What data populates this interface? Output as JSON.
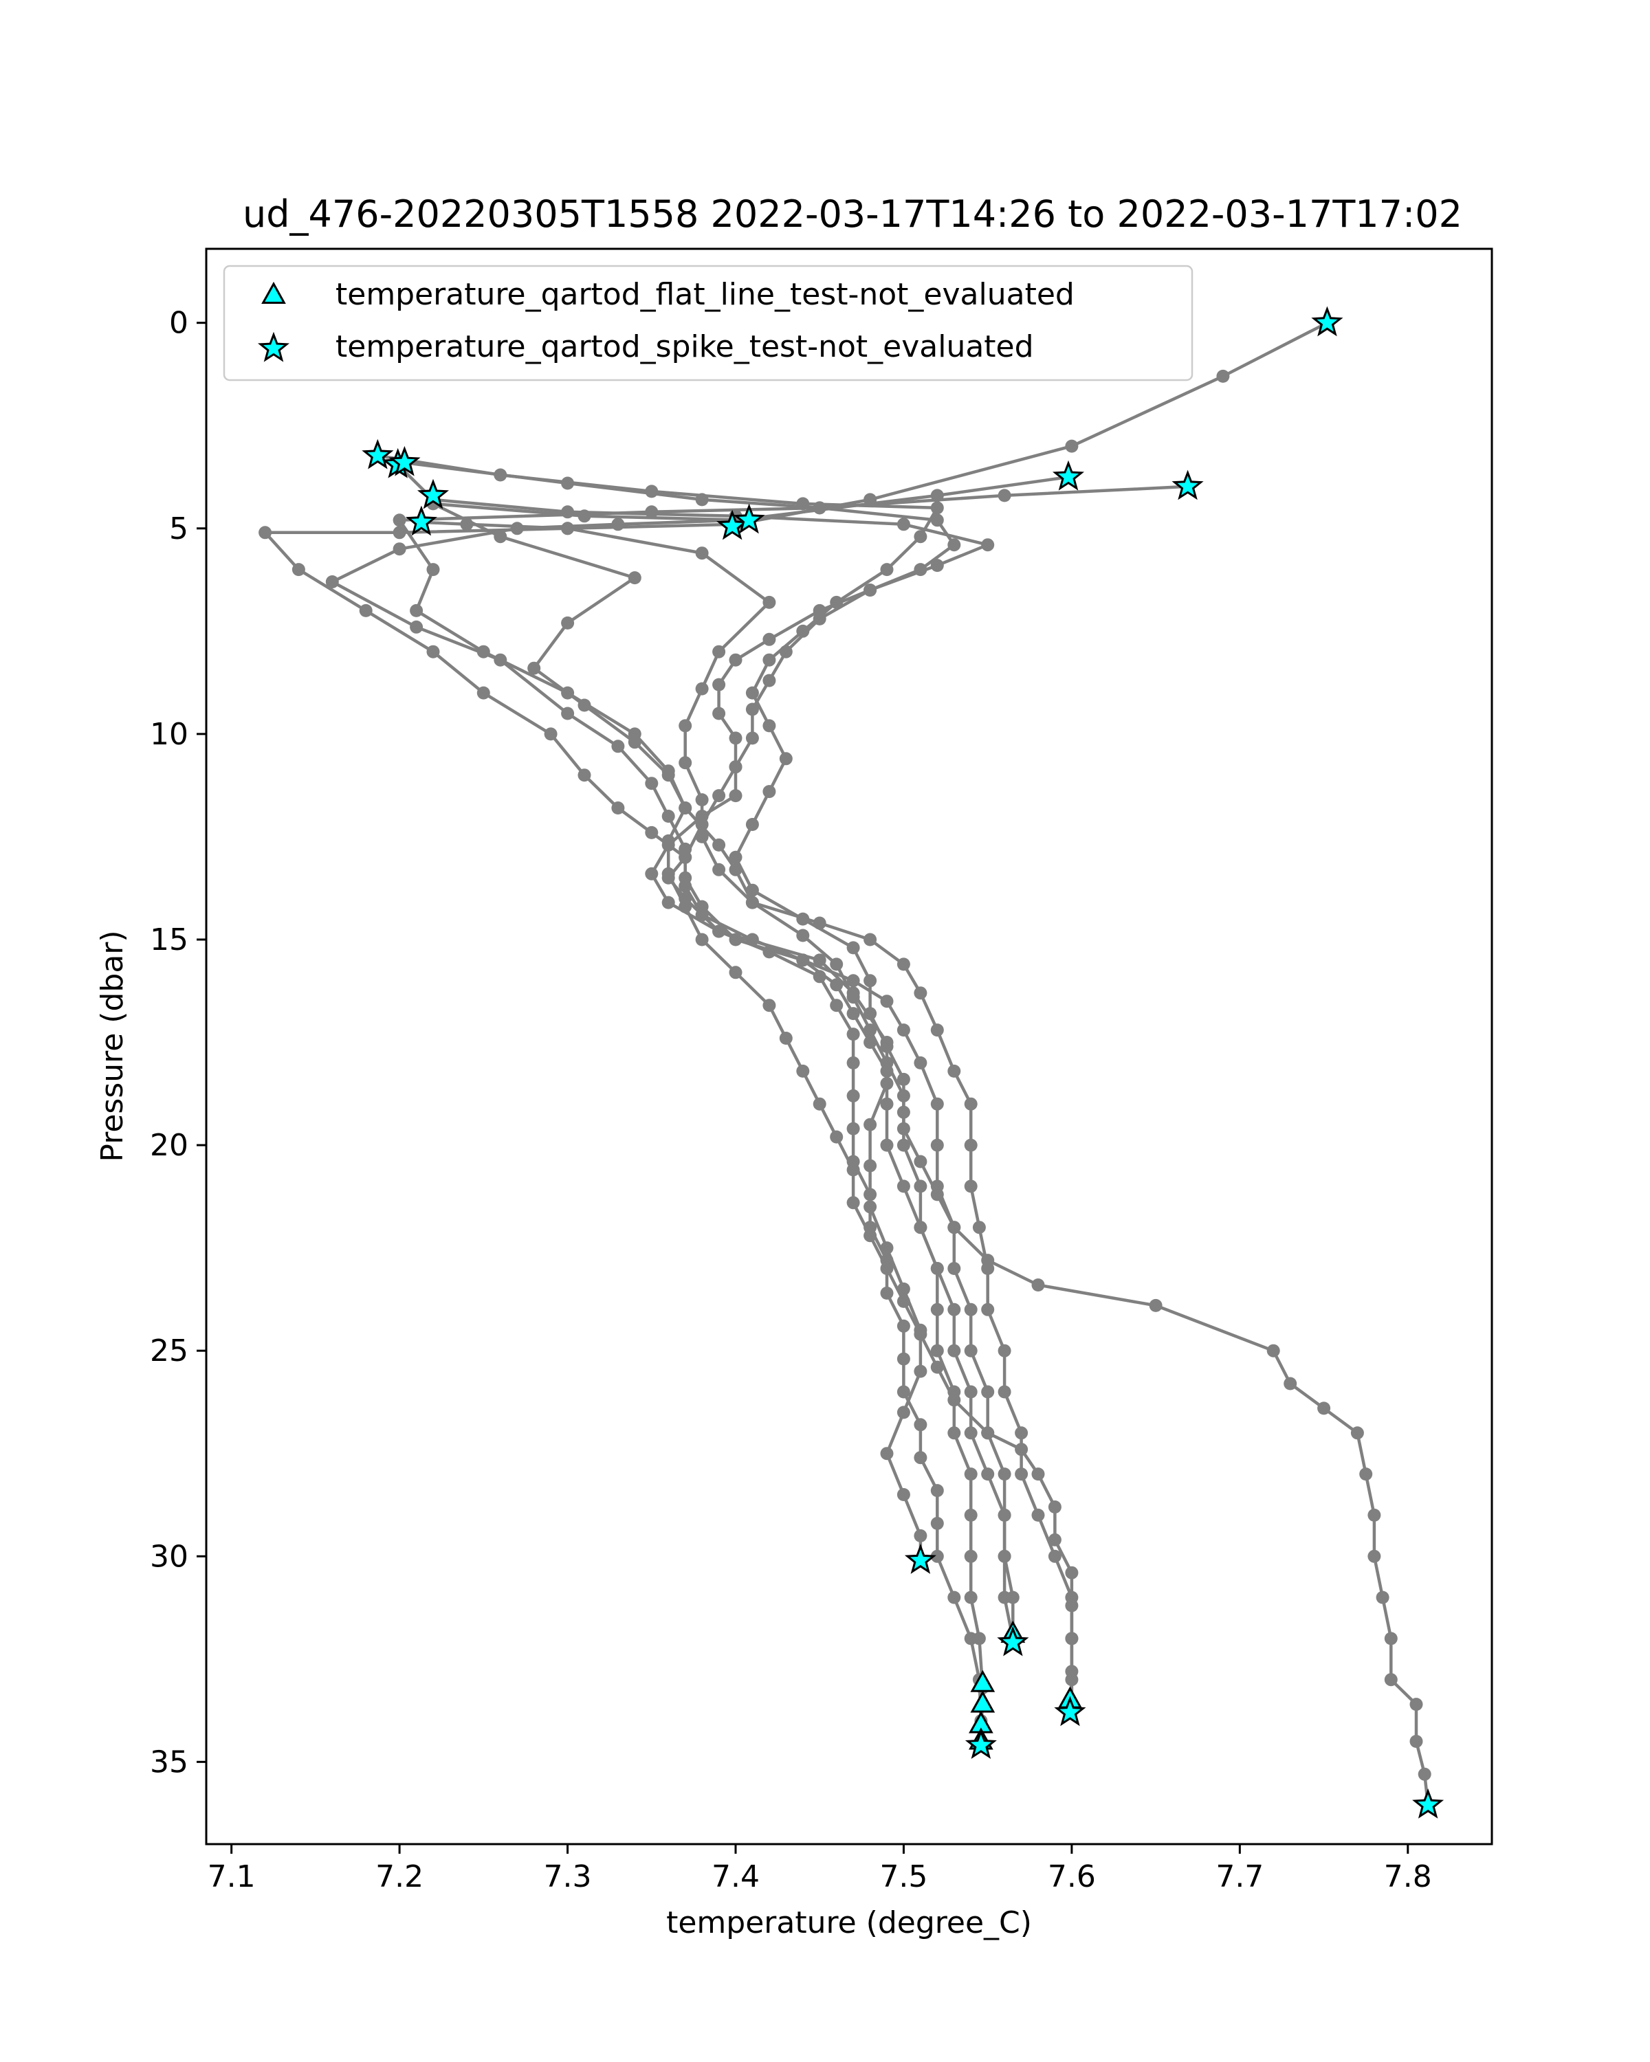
{
  "chart_data": {
    "type": "scatter",
    "title": "ud_476-20220305T1558 2022-03-17T14:26 to 2022-03-17T17:02",
    "xlabel": "temperature (degree_C)",
    "ylabel": "Pressure (dbar)",
    "xlim": [
      7.085,
      7.85
    ],
    "ylim": [
      37.0,
      -1.8
    ],
    "y_inverted": true,
    "grid": false,
    "legend_position": "top-left",
    "x_ticks": [
      7.1,
      7.2,
      7.3,
      7.4,
      7.5,
      7.6,
      7.7,
      7.8
    ],
    "x_tick_labels": [
      "7.1",
      "7.2",
      "7.3",
      "7.4",
      "7.5",
      "7.6",
      "7.7",
      "7.8"
    ],
    "y_ticks": [
      0,
      5,
      10,
      15,
      20,
      25,
      30,
      35
    ],
    "y_tick_labels": [
      "0",
      "5",
      "10",
      "15",
      "20",
      "25",
      "30",
      "35"
    ],
    "line_color": "#808080",
    "marker_color": "#00ffff",
    "profiles": [
      [
        [
          7.752,
          0.0
        ],
        [
          7.69,
          1.3
        ],
        [
          7.6,
          3.0
        ],
        [
          7.48,
          4.3
        ],
        [
          7.4,
          4.9
        ],
        [
          7.3,
          5.0
        ],
        [
          7.2,
          5.1
        ],
        [
          7.12,
          5.1
        ],
        [
          7.14,
          6.0
        ],
        [
          7.18,
          7.0
        ],
        [
          7.22,
          8.0
        ],
        [
          7.25,
          9.0
        ],
        [
          7.29,
          10.0
        ],
        [
          7.31,
          11.0
        ],
        [
          7.33,
          11.8
        ],
        [
          7.35,
          12.4
        ],
        [
          7.37,
          13.0
        ],
        [
          7.36,
          13.5
        ],
        [
          7.37,
          14.0
        ],
        [
          7.39,
          14.8
        ],
        [
          7.45,
          15.5
        ],
        [
          7.47,
          16.3
        ],
        [
          7.49,
          17.5
        ],
        [
          7.49,
          18.5
        ],
        [
          7.48,
          19.5
        ],
        [
          7.48,
          20.5
        ],
        [
          7.48,
          21.5
        ],
        [
          7.49,
          22.5
        ],
        [
          7.5,
          23.5
        ],
        [
          7.51,
          24.5
        ],
        [
          7.51,
          25.5
        ],
        [
          7.5,
          26.5
        ],
        [
          7.49,
          27.5
        ],
        [
          7.5,
          28.5
        ],
        [
          7.51,
          29.5
        ],
        [
          7.51,
          30.1
        ]
      ],
      [
        [
          7.598,
          3.75
        ],
        [
          7.52,
          4.2
        ],
        [
          7.4,
          4.8
        ],
        [
          7.33,
          4.9
        ],
        [
          7.27,
          5.0
        ],
        [
          7.2,
          5.5
        ],
        [
          7.16,
          6.3
        ],
        [
          7.21,
          7.4
        ],
        [
          7.26,
          8.2
        ],
        [
          7.3,
          9.5
        ],
        [
          7.33,
          10.3
        ],
        [
          7.35,
          11.2
        ],
        [
          7.36,
          12.0
        ],
        [
          7.37,
          12.8
        ],
        [
          7.37,
          13.5
        ],
        [
          7.38,
          14.2
        ],
        [
          7.4,
          15.0
        ],
        [
          7.44,
          15.5
        ],
        [
          7.47,
          16.0
        ],
        [
          7.49,
          16.5
        ],
        [
          7.5,
          17.2
        ],
        [
          7.51,
          18.0
        ],
        [
          7.52,
          19.0
        ],
        [
          7.52,
          20.0
        ],
        [
          7.52,
          21.0
        ],
        [
          7.53,
          22.0
        ],
        [
          7.53,
          23.0
        ],
        [
          7.54,
          24.0
        ],
        [
          7.54,
          25.0
        ],
        [
          7.55,
          26.0
        ],
        [
          7.55,
          27.0
        ],
        [
          7.56,
          28.0
        ],
        [
          7.56,
          29.0
        ],
        [
          7.56,
          30.0
        ],
        [
          7.56,
          31.0
        ],
        [
          7.565,
          32.0
        ]
      ],
      [
        [
          7.669,
          3.98
        ],
        [
          7.56,
          4.2
        ],
        [
          7.45,
          4.5
        ],
        [
          7.35,
          4.6
        ],
        [
          7.2,
          4.8
        ],
        [
          7.22,
          6.0
        ],
        [
          7.21,
          7.0
        ],
        [
          7.25,
          8.0
        ],
        [
          7.3,
          9.0
        ],
        [
          7.34,
          10.0
        ],
        [
          7.36,
          10.9
        ],
        [
          7.37,
          11.8
        ],
        [
          7.39,
          12.7
        ],
        [
          7.4,
          13.3
        ],
        [
          7.41,
          14.1
        ],
        [
          7.45,
          14.6
        ],
        [
          7.48,
          15.0
        ],
        [
          7.5,
          15.6
        ],
        [
          7.51,
          16.3
        ],
        [
          7.52,
          17.2
        ],
        [
          7.53,
          18.2
        ],
        [
          7.54,
          19.0
        ],
        [
          7.54,
          20.0
        ],
        [
          7.54,
          21.0
        ],
        [
          7.545,
          22.0
        ],
        [
          7.55,
          23.0
        ],
        [
          7.55,
          24.0
        ],
        [
          7.56,
          25.0
        ],
        [
          7.56,
          26.0
        ],
        [
          7.57,
          27.0
        ],
        [
          7.57,
          28.0
        ],
        [
          7.58,
          29.0
        ],
        [
          7.59,
          30.0
        ],
        [
          7.6,
          31.0
        ],
        [
          7.6,
          32.0
        ],
        [
          7.6,
          33.0
        ],
        [
          7.599,
          33.8
        ]
      ],
      [
        [
          7.187,
          3.23
        ],
        [
          7.26,
          3.7
        ],
        [
          7.35,
          4.1
        ],
        [
          7.44,
          4.4
        ],
        [
          7.52,
          4.5
        ],
        [
          7.51,
          5.2
        ],
        [
          7.49,
          6.0
        ],
        [
          7.46,
          6.8
        ],
        [
          7.44,
          7.5
        ],
        [
          7.42,
          8.2
        ],
        [
          7.41,
          9.0
        ],
        [
          7.42,
          9.8
        ],
        [
          7.43,
          10.6
        ],
        [
          7.42,
          11.4
        ],
        [
          7.41,
          12.2
        ],
        [
          7.4,
          13.0
        ],
        [
          7.41,
          13.8
        ],
        [
          7.44,
          14.5
        ],
        [
          7.47,
          15.2
        ],
        [
          7.48,
          16.0
        ],
        [
          7.48,
          16.8
        ],
        [
          7.49,
          17.6
        ],
        [
          7.5,
          18.4
        ],
        [
          7.5,
          19.2
        ],
        [
          7.5,
          20.0
        ],
        [
          7.51,
          21.0
        ],
        [
          7.51,
          22.0
        ],
        [
          7.52,
          23.0
        ],
        [
          7.52,
          24.0
        ],
        [
          7.52,
          25.0
        ],
        [
          7.53,
          26.0
        ],
        [
          7.53,
          27.0
        ],
        [
          7.54,
          28.0
        ],
        [
          7.54,
          29.0
        ],
        [
          7.54,
          30.0
        ],
        [
          7.54,
          31.0
        ],
        [
          7.545,
          32.0
        ],
        [
          7.547,
          33.2
        ],
        [
          7.546,
          34.6
        ]
      ],
      [
        [
          7.203,
          3.4
        ],
        [
          7.3,
          3.9
        ],
        [
          7.38,
          4.3
        ],
        [
          7.45,
          4.5
        ],
        [
          7.52,
          4.8
        ],
        [
          7.53,
          5.4
        ],
        [
          7.51,
          6.0
        ],
        [
          7.48,
          6.5
        ],
        [
          7.45,
          7.0
        ],
        [
          7.42,
          7.7
        ],
        [
          7.4,
          8.2
        ],
        [
          7.39,
          8.8
        ],
        [
          7.39,
          9.5
        ],
        [
          7.4,
          10.1
        ],
        [
          7.4,
          10.8
        ],
        [
          7.39,
          11.5
        ],
        [
          7.38,
          12.2
        ],
        [
          7.37,
          13.0
        ],
        [
          7.37,
          13.7
        ],
        [
          7.38,
          14.4
        ],
        [
          7.41,
          15.0
        ],
        [
          7.44,
          15.5
        ],
        [
          7.46,
          16.1
        ],
        [
          7.47,
          16.8
        ],
        [
          7.48,
          17.5
        ],
        [
          7.49,
          18.2
        ],
        [
          7.49,
          19.0
        ],
        [
          7.49,
          20.0
        ],
        [
          7.5,
          21.0
        ],
        [
          7.51,
          22.0
        ],
        [
          7.52,
          23.0
        ],
        [
          7.53,
          24.0
        ],
        [
          7.53,
          25.0
        ],
        [
          7.54,
          26.0
        ],
        [
          7.54,
          27.0
        ],
        [
          7.55,
          28.0
        ],
        [
          7.56,
          29.0
        ],
        [
          7.56,
          30.0
        ],
        [
          7.565,
          31.0
        ],
        [
          7.565,
          32.1
        ]
      ],
      [
        [
          7.199,
          3.45
        ],
        [
          7.22,
          4.3
        ],
        [
          7.3,
          4.6
        ],
        [
          7.4,
          4.7
        ],
        [
          7.5,
          4.9
        ],
        [
          7.55,
          5.4
        ],
        [
          7.52,
          5.9
        ],
        [
          7.48,
          6.5
        ],
        [
          7.45,
          7.2
        ],
        [
          7.43,
          8.0
        ],
        [
          7.42,
          8.7
        ],
        [
          7.41,
          9.4
        ],
        [
          7.41,
          10.1
        ],
        [
          7.4,
          10.8
        ],
        [
          7.4,
          11.5
        ],
        [
          7.38,
          12.0
        ],
        [
          7.36,
          12.7
        ],
        [
          7.35,
          13.4
        ],
        [
          7.36,
          14.1
        ],
        [
          7.39,
          14.8
        ],
        [
          7.42,
          15.3
        ],
        [
          7.45,
          15.9
        ],
        [
          7.46,
          16.6
        ],
        [
          7.47,
          17.3
        ],
        [
          7.47,
          18.0
        ],
        [
          7.47,
          18.8
        ],
        [
          7.47,
          19.6
        ],
        [
          7.47,
          20.4
        ],
        [
          7.48,
          21.2
        ],
        [
          7.48,
          22.0
        ],
        [
          7.49,
          22.8
        ],
        [
          7.49,
          23.6
        ],
        [
          7.5,
          24.4
        ],
        [
          7.5,
          25.2
        ],
        [
          7.5,
          26.0
        ],
        [
          7.51,
          26.8
        ],
        [
          7.51,
          27.6
        ],
        [
          7.52,
          28.4
        ],
        [
          7.52,
          29.2
        ],
        [
          7.52,
          30.0
        ],
        [
          7.53,
          31.0
        ],
        [
          7.54,
          32.0
        ],
        [
          7.545,
          33.0
        ],
        [
          7.546,
          34.0
        ],
        [
          7.545,
          34.6
        ]
      ],
      [
        [
          7.408,
          4.8
        ],
        [
          7.31,
          4.7
        ],
        [
          7.22,
          4.4
        ],
        [
          7.26,
          5.2
        ],
        [
          7.34,
          6.2
        ],
        [
          7.3,
          7.3
        ],
        [
          7.28,
          8.4
        ],
        [
          7.31,
          9.3
        ],
        [
          7.34,
          10.2
        ],
        [
          7.36,
          11.0
        ],
        [
          7.37,
          11.8
        ],
        [
          7.36,
          12.6
        ],
        [
          7.36,
          13.4
        ],
        [
          7.37,
          14.2
        ],
        [
          7.38,
          15.0
        ],
        [
          7.4,
          15.8
        ],
        [
          7.42,
          16.6
        ],
        [
          7.43,
          17.4
        ],
        [
          7.44,
          18.2
        ],
        [
          7.45,
          19.0
        ],
        [
          7.46,
          19.8
        ],
        [
          7.47,
          20.6
        ],
        [
          7.47,
          21.4
        ],
        [
          7.48,
          22.2
        ],
        [
          7.49,
          23.0
        ],
        [
          7.5,
          23.8
        ],
        [
          7.51,
          24.6
        ],
        [
          7.52,
          25.4
        ],
        [
          7.53,
          26.2
        ],
        [
          7.55,
          27.0
        ],
        [
          7.57,
          27.4
        ],
        [
          7.58,
          28.0
        ],
        [
          7.59,
          28.8
        ],
        [
          7.59,
          29.6
        ],
        [
          7.6,
          30.4
        ],
        [
          7.6,
          31.2
        ],
        [
          7.6,
          32.0
        ],
        [
          7.6,
          32.8
        ],
        [
          7.6,
          33.6
        ]
      ],
      [
        [
          7.213,
          4.85
        ],
        [
          7.24,
          4.9
        ],
        [
          7.3,
          5.0
        ],
        [
          7.38,
          5.6
        ],
        [
          7.42,
          6.8
        ],
        [
          7.39,
          8.0
        ],
        [
          7.38,
          8.9
        ],
        [
          7.37,
          9.8
        ],
        [
          7.37,
          10.7
        ],
        [
          7.38,
          11.6
        ],
        [
          7.38,
          12.5
        ],
        [
          7.39,
          13.3
        ],
        [
          7.41,
          14.1
        ],
        [
          7.44,
          14.9
        ],
        [
          7.46,
          15.6
        ],
        [
          7.47,
          16.4
        ],
        [
          7.48,
          17.2
        ],
        [
          7.49,
          18.0
        ],
        [
          7.5,
          18.8
        ],
        [
          7.5,
          19.6
        ],
        [
          7.51,
          20.4
        ],
        [
          7.52,
          21.2
        ],
        [
          7.53,
          22.0
        ],
        [
          7.55,
          22.8
        ],
        [
          7.58,
          23.4
        ],
        [
          7.65,
          23.9
        ],
        [
          7.72,
          25.0
        ],
        [
          7.73,
          25.8
        ],
        [
          7.75,
          26.4
        ],
        [
          7.77,
          27.0
        ],
        [
          7.775,
          28.0
        ],
        [
          7.78,
          29.0
        ],
        [
          7.78,
          30.0
        ],
        [
          7.785,
          31.0
        ],
        [
          7.79,
          32.0
        ],
        [
          7.79,
          33.0
        ],
        [
          7.805,
          33.6
        ],
        [
          7.805,
          34.5
        ],
        [
          7.81,
          35.3
        ],
        [
          7.812,
          36.05
        ]
      ]
    ],
    "series": [
      {
        "name": "temperature_qartod_flat_line_test-not_evaluated",
        "marker": "triangle",
        "points": [
          [
            7.547,
            33.1
          ],
          [
            7.547,
            33.6
          ],
          [
            7.546,
            34.1
          ],
          [
            7.546,
            34.5
          ],
          [
            7.565,
            31.9
          ],
          [
            7.599,
            33.5
          ]
        ]
      },
      {
        "name": "temperature_qartod_spike_test-not_evaluated",
        "marker": "star",
        "points": [
          [
            7.752,
            0.0
          ],
          [
            7.187,
            3.23
          ],
          [
            7.199,
            3.45
          ],
          [
            7.203,
            3.4
          ],
          [
            7.22,
            4.2
          ],
          [
            7.213,
            4.85
          ],
          [
            7.398,
            4.95
          ],
          [
            7.408,
            4.8
          ],
          [
            7.598,
            3.75
          ],
          [
            7.669,
            3.98
          ],
          [
            7.51,
            30.1
          ],
          [
            7.565,
            32.1
          ],
          [
            7.599,
            33.8
          ],
          [
            7.546,
            34.6
          ],
          [
            7.812,
            36.05
          ]
        ]
      }
    ]
  }
}
